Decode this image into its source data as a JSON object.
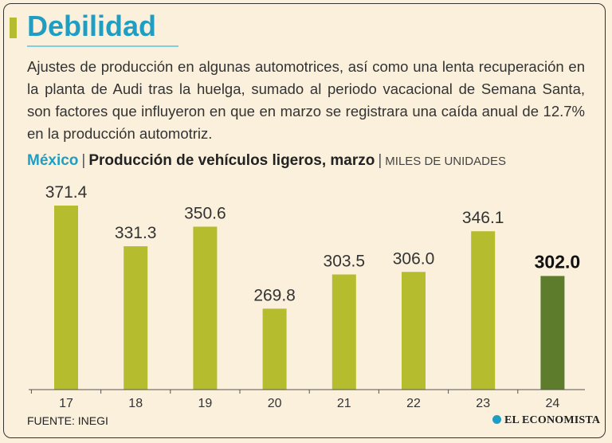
{
  "header": {
    "title": "Debilidad",
    "description": "Ajustes de producción en algunas automotrices, así como una lenta recuperación en la planta de Audi tras la huelga, sumado al periodo vacacional de Semana Santa, son factores que influyeron en que en marzo se registrara una caída anual de 12.7% en la producción automotriz."
  },
  "subtitle": {
    "country": "México",
    "main": "Producción de vehículos ligeros, marzo",
    "units": "MILES DE UNIDADES"
  },
  "footer": {
    "source": "FUENTE: INEGI",
    "brand": "EL ECONOMISTA"
  },
  "colors": {
    "bar": "#b5bd2f",
    "highlight": "#5e7d2c",
    "title": "#1f9ec4"
  },
  "chart_data": {
    "type": "bar",
    "title": "Producción de vehículos ligeros, marzo",
    "ylabel": "Miles de unidades",
    "categories": [
      "17",
      "18",
      "19",
      "20",
      "21",
      "22",
      "23",
      "24"
    ],
    "values": [
      371.4,
      331.3,
      350.6,
      269.8,
      303.5,
      306.0,
      346.1,
      302.0
    ],
    "labels": [
      "371.4",
      "331.3",
      "350.6",
      "269.8",
      "303.5",
      "306.0",
      "346.1",
      "302.0"
    ],
    "highlight_index": 7,
    "ylim": [
      200,
      380
    ],
    "grid": false
  }
}
